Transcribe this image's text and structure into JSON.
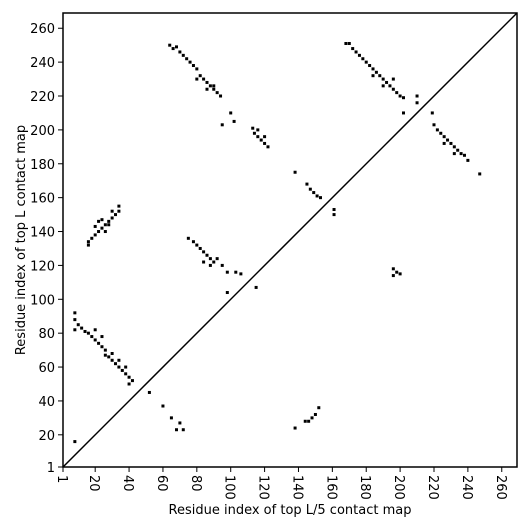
{
  "chart_data": {
    "type": "scatter",
    "xlabel": "Residue index of top L/5 contact map",
    "ylabel": "Residue index of top L contact map",
    "xlim": [
      1,
      269
    ],
    "ylim": [
      1,
      269
    ],
    "xticks": [
      1,
      20,
      40,
      60,
      80,
      100,
      120,
      140,
      160,
      180,
      200,
      220,
      240,
      260
    ],
    "yticks": [
      1,
      20,
      40,
      60,
      80,
      100,
      120,
      140,
      160,
      180,
      200,
      220,
      240,
      260
    ],
    "color": "#000000",
    "x": [
      8,
      8,
      10,
      12,
      8,
      14,
      16,
      18,
      20,
      22,
      24,
      26,
      26,
      28,
      30,
      32,
      34,
      36,
      38,
      40,
      42,
      40,
      30,
      24,
      20,
      34,
      38,
      8,
      16,
      18,
      20,
      22,
      24,
      26,
      28,
      30,
      32,
      34,
      34,
      22,
      24,
      26,
      28,
      30,
      20,
      16,
      64,
      66,
      68,
      70,
      72,
      74,
      76,
      78,
      80,
      82,
      84,
      86,
      88,
      90,
      92,
      94,
      80,
      86,
      90,
      75,
      78,
      80,
      82,
      84,
      86,
      88,
      90,
      92,
      95,
      98,
      103,
      106,
      98,
      115,
      84,
      88,
      95,
      100,
      102,
      113,
      114,
      116,
      118,
      120,
      122,
      116,
      120,
      138,
      145,
      147,
      149,
      151,
      153,
      161,
      161,
      168,
      170,
      172,
      174,
      176,
      178,
      180,
      182,
      184,
      186,
      188,
      190,
      192,
      194,
      196,
      198,
      200,
      202,
      184,
      190,
      196,
      202,
      210,
      210,
      219,
      220,
      222,
      224,
      226,
      228,
      230,
      232,
      234,
      236,
      238,
      240,
      247,
      226,
      232,
      196,
      198,
      196,
      200,
      152,
      150,
      148,
      146,
      144,
      138,
      70,
      72,
      68,
      65,
      60,
      52
    ],
    "y": [
      92,
      88,
      85,
      83,
      82,
      81,
      80,
      78,
      76,
      74,
      72,
      70,
      67,
      66,
      64,
      62,
      60,
      58,
      56,
      54,
      52,
      50,
      68,
      78,
      82,
      64,
      60,
      16,
      134,
      136,
      138,
      140,
      142,
      144,
      146,
      148,
      150,
      152,
      155,
      146,
      147,
      140,
      144,
      152,
      143,
      132,
      250,
      248,
      249,
      246,
      244,
      242,
      240,
      238,
      236,
      232,
      230,
      228,
      226,
      224,
      222,
      220,
      230,
      224,
      226,
      136,
      134,
      132,
      130,
      128,
      126,
      124,
      122,
      124,
      120,
      116,
      116,
      115,
      104,
      107,
      122,
      120,
      203,
      210,
      205,
      201,
      198,
      196,
      194,
      192,
      190,
      200,
      196,
      175,
      168,
      165,
      163,
      161,
      160,
      153,
      150,
      251,
      251,
      248,
      246,
      244,
      242,
      240,
      238,
      236,
      234,
      232,
      230,
      228,
      226,
      224,
      222,
      220,
      219,
      232,
      226,
      230,
      210,
      220,
      216,
      210,
      203,
      200,
      198,
      196,
      194,
      192,
      190,
      188,
      186,
      185,
      182,
      174,
      192,
      186,
      118,
      116,
      114,
      115,
      36,
      32,
      30,
      28,
      28,
      24,
      27,
      23,
      23,
      30,
      37,
      45
    ]
  }
}
